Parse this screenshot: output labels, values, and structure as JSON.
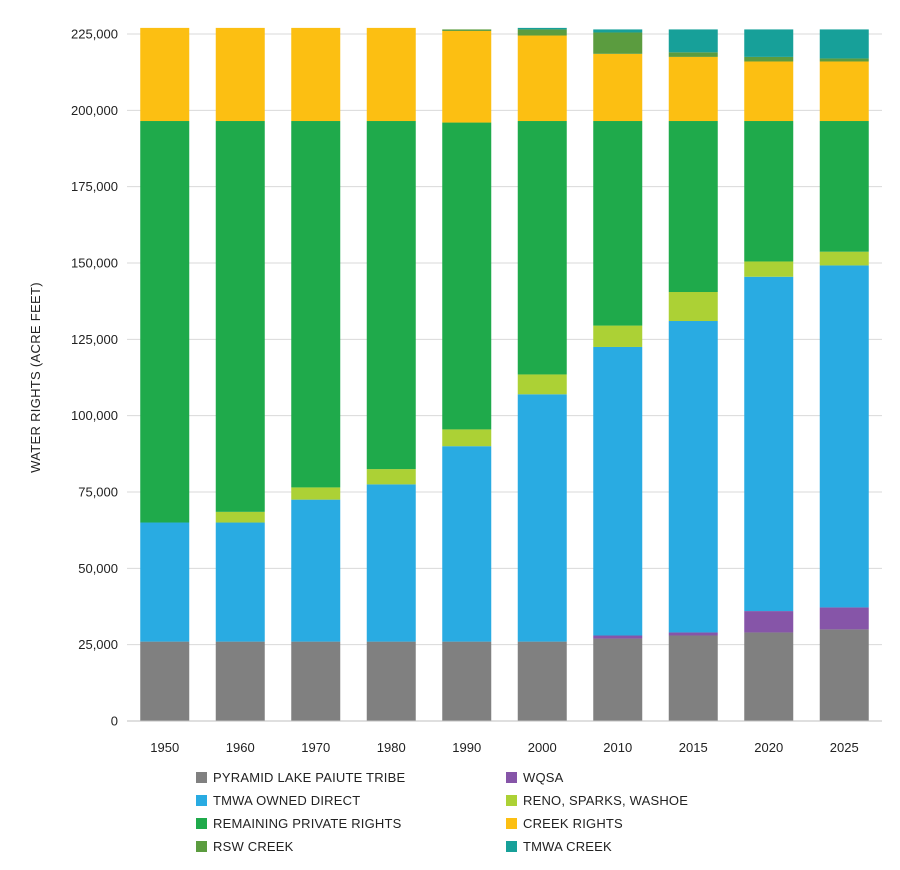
{
  "chart_data": {
    "type": "bar",
    "stacked": true,
    "title": "",
    "xlabel": "",
    "ylabel": "WATER RIGHTS (ACRE FEET)",
    "ylim": [
      0,
      225000
    ],
    "yticks": [
      "0",
      "25,000",
      "50,000",
      "75,000",
      "100,000",
      "125,000",
      "150,000",
      "175,000",
      "200,000",
      "225,000"
    ],
    "ytick_values": [
      0,
      25000,
      50000,
      75000,
      100000,
      125000,
      150000,
      175000,
      200000,
      225000
    ],
    "grid": "horizontal",
    "legend_position": "bottom",
    "categories": [
      "1950",
      "1960",
      "1970",
      "1980",
      "1990",
      "2000",
      "2010",
      "2015",
      "2020",
      "2025"
    ],
    "series": [
      {
        "name": "PYRAMID LAKE PAIUTE TRIBE",
        "color": "#808080",
        "values": [
          26000,
          26000,
          26000,
          26000,
          26000,
          26000,
          27000,
          28000,
          29000,
          30000
        ]
      },
      {
        "name": "WQSA",
        "color": "#8655a8",
        "values": [
          0,
          0,
          0,
          0,
          0,
          0,
          1000,
          1000,
          7000,
          7200
        ]
      },
      {
        "name": "TMWA OWNED DIRECT",
        "color": "#29abe2",
        "values": [
          39000,
          39000,
          46500,
          51500,
          64000,
          81000,
          94500,
          102000,
          109500,
          112000
        ]
      },
      {
        "name": "RENO, SPARKS, WASHOE",
        "color": "#acd135",
        "values": [
          0,
          3500,
          4000,
          5000,
          5500,
          6500,
          7000,
          9500,
          5000,
          4500
        ]
      },
      {
        "name": "REMAINING PRIVATE RIGHTS",
        "color": "#1faa4b",
        "values": [
          131500,
          128000,
          120000,
          114000,
          100500,
          83000,
          67000,
          56000,
          46000,
          42800
        ]
      },
      {
        "name": "CREEK RIGHTS",
        "color": "#fcbf12",
        "values": [
          30500,
          30500,
          30500,
          30500,
          30000,
          28000,
          22000,
          21000,
          19500,
          19500
        ]
      },
      {
        "name": "RSW CREEK",
        "color": "#5b9c3f",
        "values": [
          0,
          0,
          0,
          0,
          500,
          2000,
          7000,
          1500,
          1500,
          1000
        ]
      },
      {
        "name": "TMWA CREEK",
        "color": "#17a099",
        "values": [
          0,
          0,
          0,
          0,
          0,
          500,
          1000,
          7500,
          9000,
          9500
        ]
      }
    ]
  }
}
